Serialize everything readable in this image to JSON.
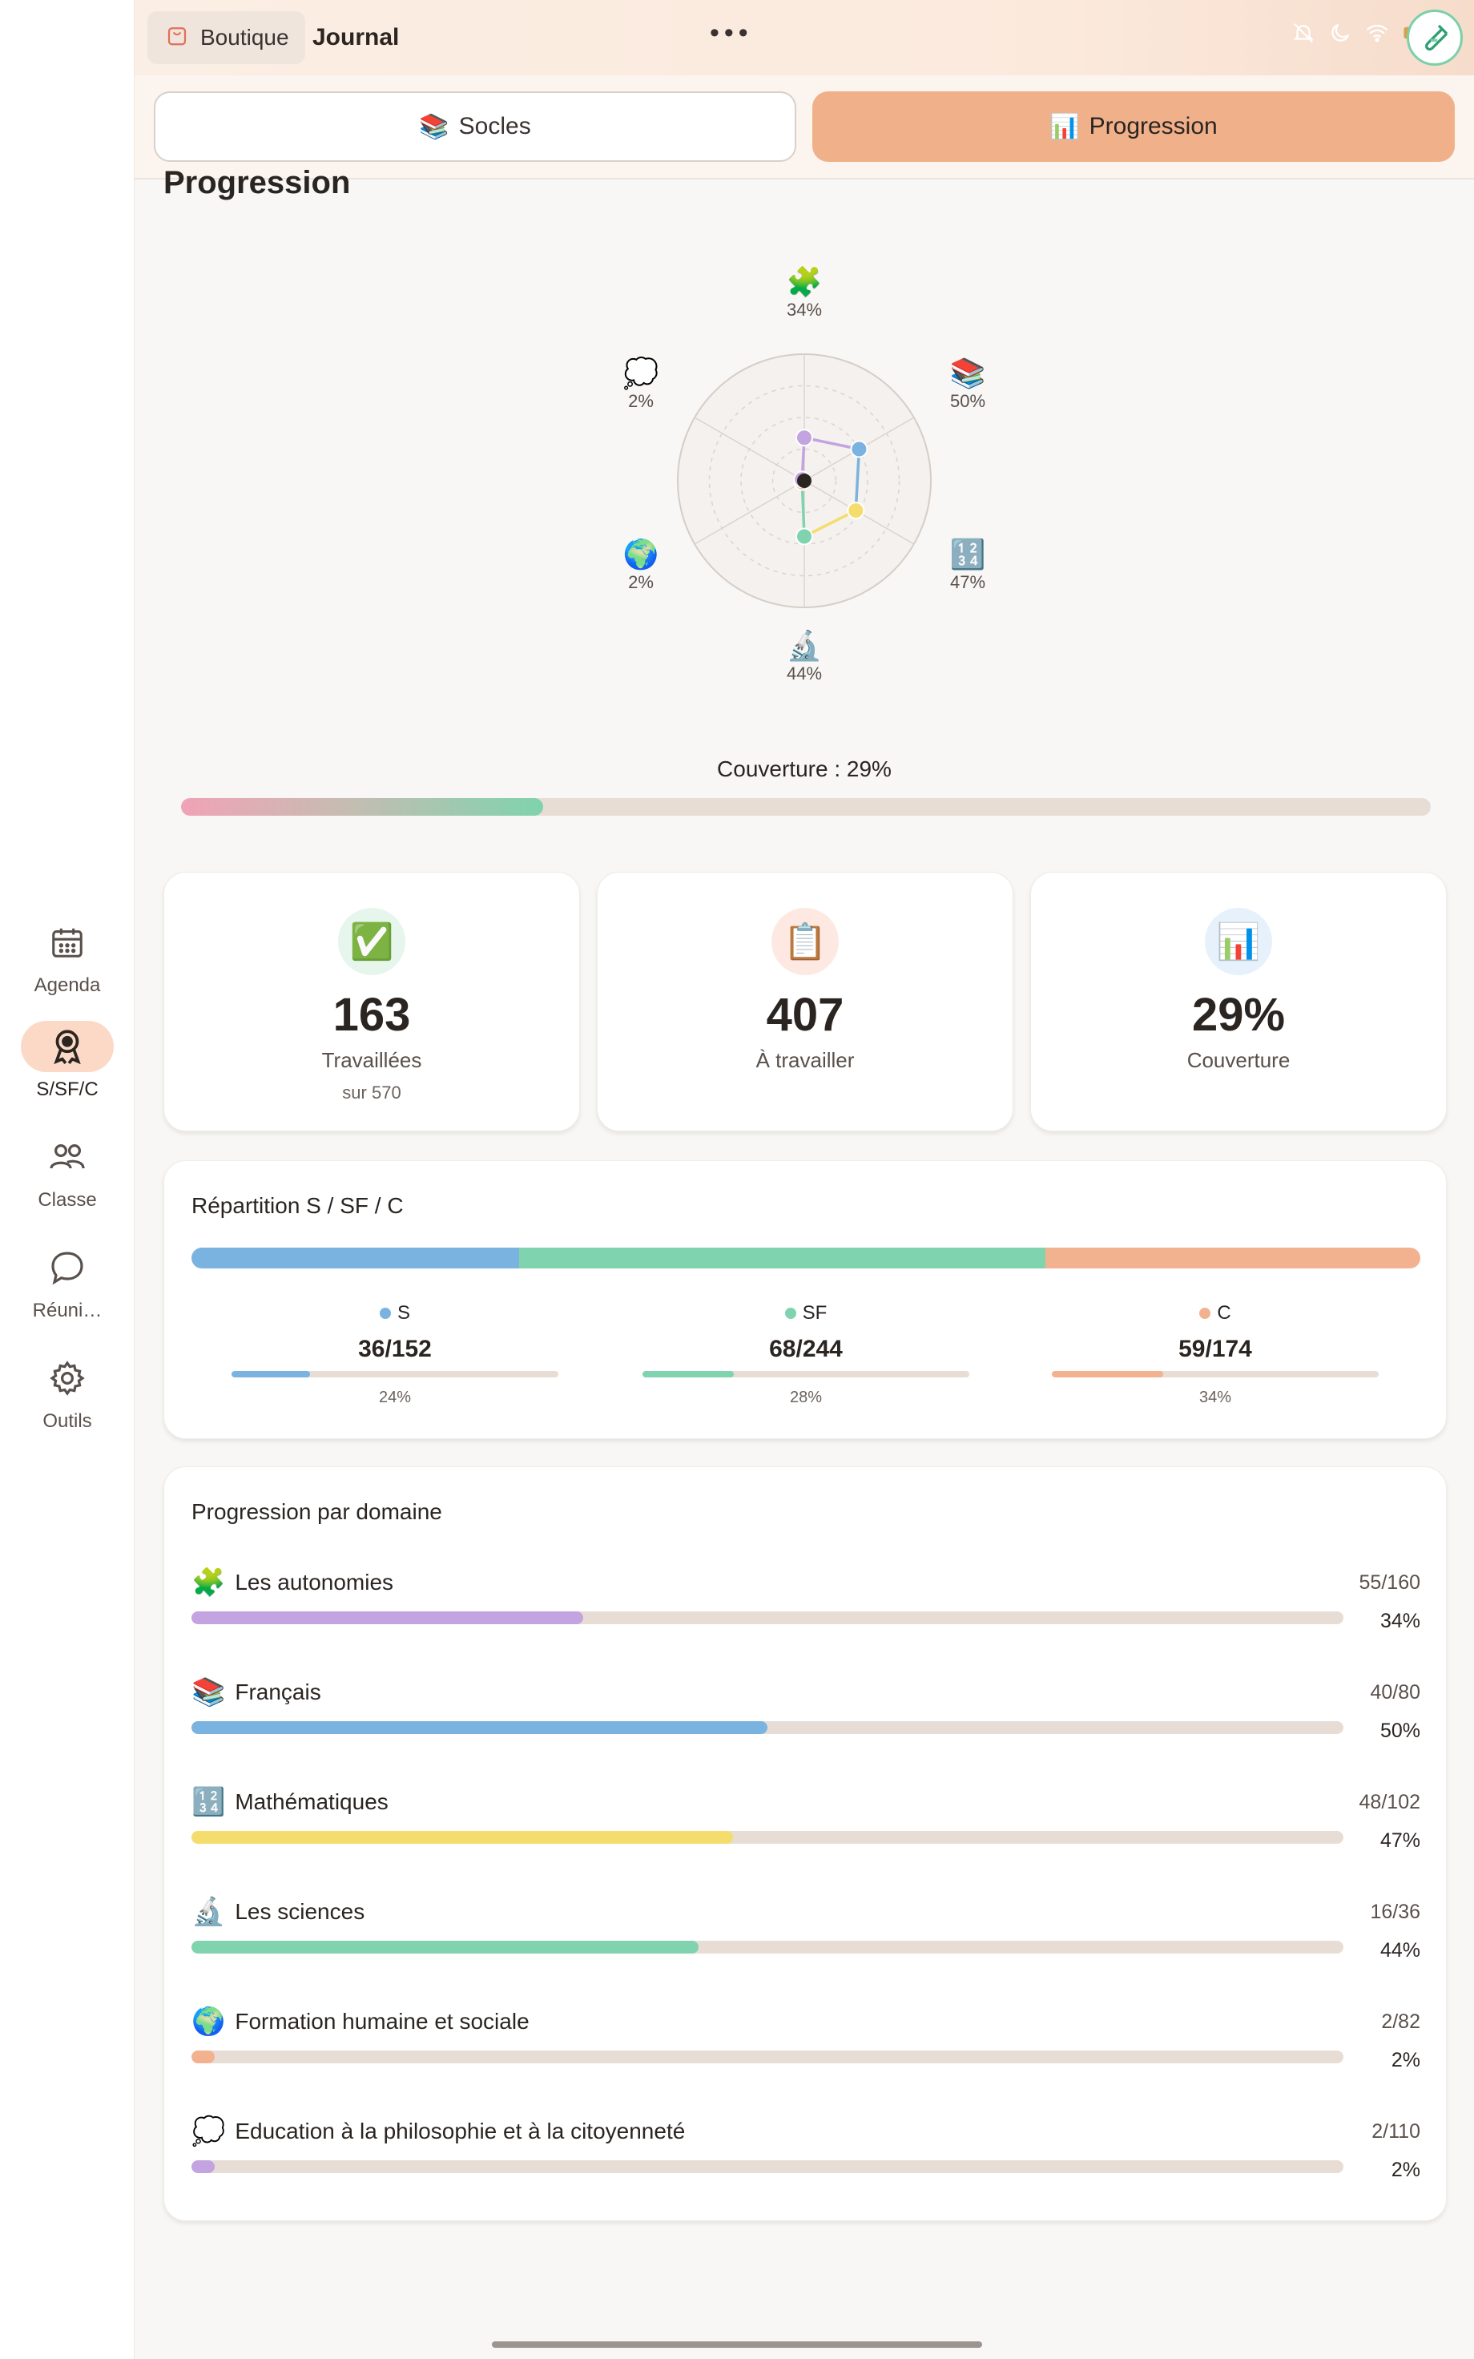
{
  "sidebar": {
    "items": [
      {
        "label": "Agenda",
        "icon": "calendar-icon",
        "active": false
      },
      {
        "label": "S/SF/C",
        "icon": "award-icon",
        "active": true
      },
      {
        "label": "Classe",
        "icon": "users-icon",
        "active": false
      },
      {
        "label": "Réuni…",
        "icon": "chat-bubble-icon",
        "active": false
      },
      {
        "label": "Outils",
        "icon": "gear-icon",
        "active": false
      }
    ]
  },
  "topbar": {
    "boutique_label": "Boutique",
    "journal_label": "Journal",
    "more": "•••"
  },
  "segments": {
    "socles_label": "Socles",
    "socles_icon": "📚",
    "progression_label": "Progression",
    "progression_icon": "📊"
  },
  "page_title": "Progression",
  "radar": {
    "axes": [
      {
        "icon": "🧩",
        "pct": "34%",
        "value": 34,
        "color": "#c3a3e0"
      },
      {
        "icon": "📚",
        "pct": "50%",
        "value": 50,
        "color": "#7ab3df"
      },
      {
        "icon": "🔢",
        "pct": "47%",
        "value": 47,
        "color": "#f4dd6c"
      },
      {
        "icon": "🔬",
        "pct": "44%",
        "value": 44,
        "color": "#7fd3ae"
      },
      {
        "icon": "🌍",
        "pct": "2%",
        "value": 2,
        "color": "#f3b28f"
      },
      {
        "icon": "💭",
        "pct": "2%",
        "value": 2,
        "color": "#c3a3e0"
      }
    ]
  },
  "coverage": {
    "label": "Couverture : 29%",
    "value": 29
  },
  "stats": [
    {
      "icon": "✅",
      "value": "163",
      "label": "Travaillées",
      "sub": "sur 570",
      "bg": "#e6f6ec"
    },
    {
      "icon": "📋",
      "value": "407",
      "label": "À travailler",
      "sub": "",
      "bg": "#fde9e1"
    },
    {
      "icon": "📊",
      "value": "29%",
      "label": "Couverture",
      "sub": "",
      "bg": "#e7f1fb"
    }
  ],
  "repartition": {
    "title": "Répartition S / SF / C",
    "parts": [
      {
        "name": "S",
        "frac": "36/152",
        "pct": "24%",
        "value": 24,
        "share": 152,
        "color": "#7ab3df"
      },
      {
        "name": "SF",
        "frac": "68/244",
        "pct": "28%",
        "value": 28,
        "share": 244,
        "color": "#7fd3ae"
      },
      {
        "name": "C",
        "frac": "59/174",
        "pct": "34%",
        "value": 34,
        "share": 174,
        "color": "#f3b28f"
      }
    ]
  },
  "domains": {
    "title": "Progression par domaine",
    "items": [
      {
        "icon": "🧩",
        "name": "Les autonomies",
        "count": "55/160",
        "pct": "34%",
        "value": 34,
        "color": "#c3a3e0"
      },
      {
        "icon": "📚",
        "name": "Français",
        "count": "40/80",
        "pct": "50%",
        "value": 50,
        "color": "#7ab3df"
      },
      {
        "icon": "🔢",
        "name": "Mathématiques",
        "count": "48/102",
        "pct": "47%",
        "value": 47,
        "color": "#f4dd6c"
      },
      {
        "icon": "🔬",
        "name": "Les sciences",
        "count": "16/36",
        "pct": "44%",
        "value": 44,
        "color": "#7fd3ae"
      },
      {
        "icon": "🌍",
        "name": "Formation humaine et sociale",
        "count": "2/82",
        "pct": "2%",
        "value": 2,
        "color": "#f3b28f"
      },
      {
        "icon": "💭",
        "name": "Education à la philosophie et à la citoyenneté",
        "count": "2/110",
        "pct": "2%",
        "value": 2,
        "color": "#c3a3e0"
      }
    ]
  }
}
